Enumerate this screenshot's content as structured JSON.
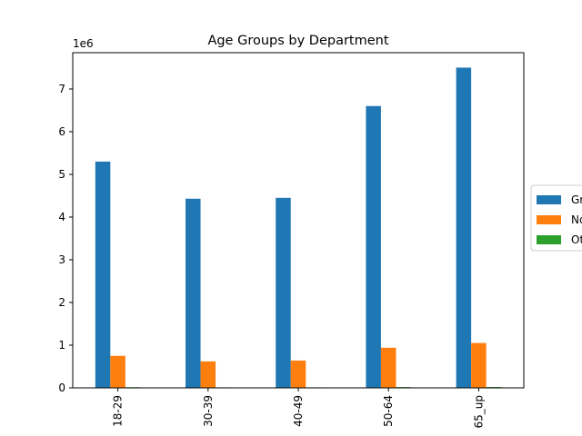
{
  "chart_data": {
    "type": "bar",
    "title": "Age Groups by Department",
    "xlabel": "",
    "ylabel": "",
    "y_offset_label": "1e6",
    "categories": [
      "18-29",
      "30-39",
      "40-49",
      "50-64",
      "65_up"
    ],
    "series": [
      {
        "name": "Gr",
        "color": "#1f77b4",
        "values": [
          5300000,
          4430000,
          4450000,
          6600000,
          7500000
        ]
      },
      {
        "name": "No",
        "color": "#ff7f0e",
        "values": [
          750000,
          620000,
          640000,
          940000,
          1050000
        ]
      },
      {
        "name": "Ot",
        "color": "#2ca02c",
        "values": [
          15000,
          12000,
          12000,
          18000,
          20000
        ]
      }
    ],
    "ylim": [
      0,
      7850000
    ],
    "yticks": [
      0,
      1,
      2,
      3,
      4,
      5,
      6,
      7
    ],
    "ytick_scale": 1000000,
    "grid": false,
    "legend_position": "center-right"
  }
}
